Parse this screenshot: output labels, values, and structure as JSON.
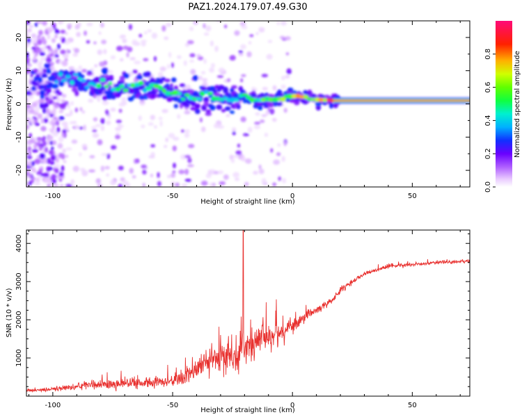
{
  "figure_title": "PAZ1.2024.179.07.49.G30",
  "chart_data": [
    {
      "type": "heatmap",
      "title": "",
      "xlabel": "Height of straight line (km)",
      "ylabel": "Frequency (Hz)",
      "xlim": [
        -111,
        74
      ],
      "ylim": [
        -25,
        25
      ],
      "xticks": [
        -100,
        -50,
        0,
        50
      ],
      "yticks": [
        -20,
        -10,
        0,
        10,
        20
      ],
      "colorbar": {
        "label": "Normalized spectral amplitude",
        "range": [
          0,
          1
        ],
        "ticks": [
          0.0,
          0.2,
          0.4,
          0.6,
          0.8
        ],
        "colormap": "rainbow (white → violet → blue → cyan → green → yellow → orange → red → magenta)"
      },
      "ridge": {
        "description": "Dominant frequency line vs height",
        "x": [
          -105,
          -95,
          -85,
          -75,
          -65,
          -55,
          -45,
          -35,
          -25,
          -20,
          -15,
          -10,
          -5,
          0,
          5,
          10,
          15,
          20,
          40,
          60,
          74
        ],
        "y": [
          7,
          8,
          6,
          5,
          5,
          4.5,
          2.5,
          2,
          1.5,
          2.5,
          1,
          1.5,
          1.5,
          2.5,
          2,
          1.5,
          1,
          1,
          1,
          1,
          1
        ],
        "peak_amplitude": [
          0.3,
          0.45,
          0.45,
          0.5,
          0.5,
          0.5,
          0.5,
          0.5,
          0.45,
          0.5,
          0.55,
          0.6,
          0.65,
          0.7,
          0.7,
          0.75,
          0.85,
          0.9,
          0.9,
          0.9,
          0.9
        ]
      }
    },
    {
      "type": "line",
      "title": "",
      "xlabel": "Height of straight line (km)",
      "ylabel": "SNR (10 * v/v)",
      "xlim": [
        -111,
        74
      ],
      "ylim": [
        0,
        4350
      ],
      "xticks": [
        -100,
        -50,
        0,
        50
      ],
      "yticks": [
        1000,
        2000,
        3000,
        4000
      ],
      "color": "#e8302e",
      "trend": {
        "x": [
          -111,
          -100,
          -90,
          -80,
          -70,
          -60,
          -50,
          -45,
          -40,
          -35,
          -30,
          -25,
          -20,
          -15,
          -10,
          -5,
          0,
          5,
          10,
          15,
          20,
          25,
          30,
          40,
          50,
          60,
          70,
          74
        ],
        "y": [
          150,
          180,
          250,
          300,
          330,
          340,
          380,
          500,
          700,
          900,
          1000,
          1100,
          1250,
          1400,
          1600,
          1700,
          1800,
          2050,
          2250,
          2450,
          2750,
          3000,
          3200,
          3400,
          3450,
          3500,
          3520,
          3530
        ],
        "noise": [
          60,
          70,
          120,
          180,
          200,
          170,
          200,
          300,
          400,
          550,
          600,
          600,
          650,
          600,
          550,
          450,
          350,
          250,
          200,
          150,
          120,
          100,
          80,
          70,
          60,
          60,
          60,
          60
        ]
      },
      "annotation_spike": {
        "x": -20.5,
        "y": 4350
      }
    }
  ]
}
